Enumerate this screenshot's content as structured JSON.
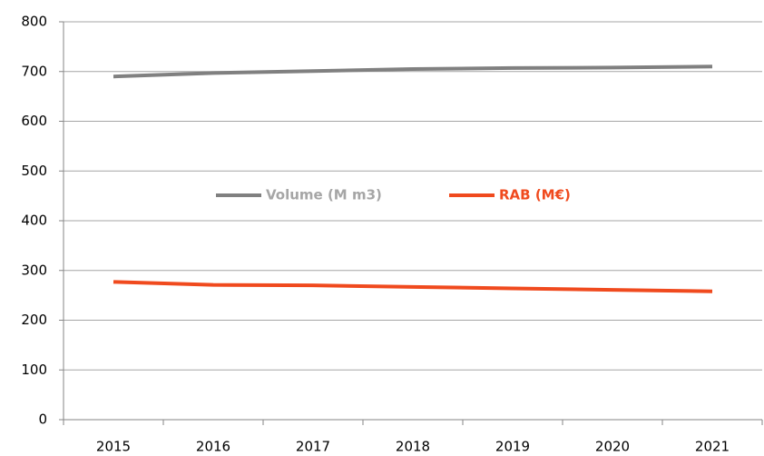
{
  "chart_data": {
    "type": "line",
    "categories": [
      "2015",
      "2016",
      "2017",
      "2018",
      "2019",
      "2020",
      "2021"
    ],
    "series": [
      {
        "name": "Volume (M m3)",
        "color": "#808080",
        "values": [
          690,
          697,
          701,
          705,
          707,
          708,
          710
        ]
      },
      {
        "name": "RAB (M€)",
        "color": "#f04a1e",
        "values": [
          277,
          271,
          270,
          267,
          264,
          261,
          258
        ]
      }
    ],
    "ylim": [
      0,
      800
    ],
    "yticks": [
      0,
      100,
      200,
      300,
      400,
      500,
      600,
      700,
      800
    ],
    "grid": true,
    "legend": "center"
  }
}
